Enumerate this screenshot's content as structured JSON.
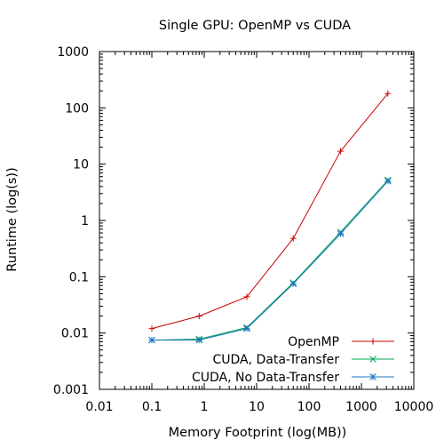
{
  "chart_data": {
    "type": "line",
    "title": "Single GPU: OpenMP vs CUDA",
    "xlabel": "Memory Footprint (log(MB))",
    "ylabel": "Runtime (log(s))",
    "xscale": "log",
    "yscale": "log",
    "xlim": [
      0.01,
      10000
    ],
    "ylim": [
      0.001,
      1000
    ],
    "x_ticks": [
      0.01,
      0.1,
      1,
      10,
      100,
      1000,
      10000
    ],
    "x_tick_labels": [
      "0.01",
      "0.1",
      "1",
      "10",
      "100",
      "1000",
      "10000"
    ],
    "y_ticks": [
      0.001,
      0.01,
      0.1,
      1,
      10,
      100,
      1000
    ],
    "y_tick_labels": [
      "0.001",
      "0.01",
      "0.1",
      "1",
      "10",
      "100",
      "1000"
    ],
    "grid": false,
    "legend_position": "bottom-right",
    "series": [
      {
        "name": "OpenMP",
        "color": "#cc0000",
        "marker": "plus",
        "points": [
          [
            0.1,
            0.012
          ],
          [
            0.8,
            0.02
          ],
          [
            6.5,
            0.044
          ],
          [
            50,
            0.48
          ],
          [
            400,
            17
          ],
          [
            3200,
            180
          ]
        ]
      },
      {
        "name": "CUDA, Data-Transfer",
        "color": "#00a650",
        "marker": "cross",
        "points": [
          [
            0.1,
            0.0075
          ],
          [
            0.8,
            0.0078
          ],
          [
            6.5,
            0.0125
          ],
          [
            50,
            0.078
          ],
          [
            400,
            0.62
          ],
          [
            3200,
            5.2
          ]
        ]
      },
      {
        "name": "CUDA, No Data-Transfer",
        "color": "#1f77c4",
        "marker": "star",
        "points": [
          [
            0.1,
            0.0075
          ],
          [
            0.8,
            0.0075
          ],
          [
            6.5,
            0.012
          ],
          [
            50,
            0.075
          ],
          [
            400,
            0.58
          ],
          [
            3200,
            5.0
          ]
        ]
      }
    ]
  }
}
